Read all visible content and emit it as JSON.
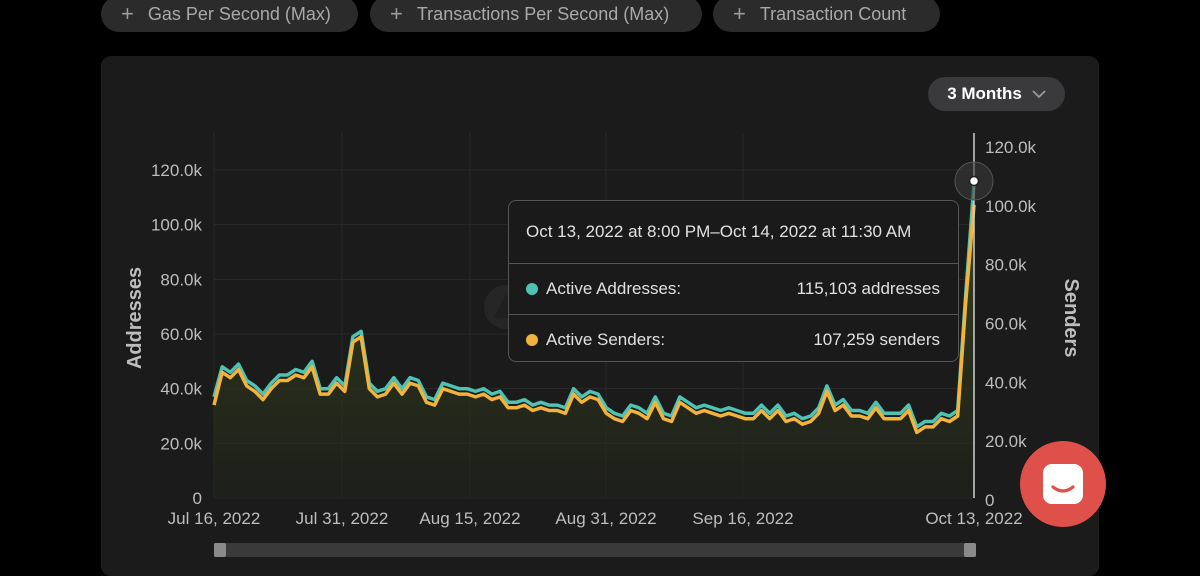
{
  "filters": [
    {
      "label": "Gas Per Second (Max)"
    },
    {
      "label": "Transactions Per Second (Max)"
    },
    {
      "label": "Transaction Count"
    }
  ],
  "range_selector": {
    "label": "3 Months",
    "icon": "chevron-down-icon"
  },
  "tooltip": {
    "date_range": "Oct 13, 2022 at 8:00 PM–Oct 14, 2022 at 11:30 AM",
    "rows": [
      {
        "label": "Active Addresses:",
        "value": "115,103 addresses",
        "color": "#4ec3b4"
      },
      {
        "label": "Active Senders:",
        "value": "107,259 senders",
        "color": "#f2b33d"
      }
    ]
  },
  "colors": {
    "addresses": "#4ec3b4",
    "senders": "#f2b33d",
    "chat": "#e0504a"
  },
  "chart_data": {
    "type": "line",
    "title": "",
    "xlabel": "",
    "ylabel": "Addresses",
    "ylabel_right": "Senders",
    "x_ticks": [
      "Jul 16, 2022",
      "Jul 31, 2022",
      "Aug 15, 2022",
      "Aug 31, 2022",
      "Sep 16, 2022",
      "Oct 13, 2022"
    ],
    "y_ticks_left": [
      "0",
      "20.0k",
      "40.0k",
      "60.0k",
      "80.0k",
      "100.0k",
      "120.0k"
    ],
    "y_ticks_right": [
      "0",
      "20.0k",
      "40.0k",
      "60.0k",
      "80.0k",
      "100.0k",
      "120.0k"
    ],
    "ylim": [
      0,
      128000
    ],
    "series": [
      {
        "name": "Active Addresses",
        "color": "#4ec3b4",
        "values": [
          37000,
          48000,
          46000,
          49000,
          43000,
          41000,
          38000,
          42000,
          45000,
          45000,
          47000,
          46000,
          50000,
          40000,
          40000,
          44000,
          41000,
          59000,
          61000,
          42000,
          39000,
          40000,
          44000,
          40000,
          44000,
          43000,
          37000,
          36000,
          42000,
          41000,
          40000,
          40000,
          39000,
          40000,
          38000,
          39000,
          35000,
          35000,
          36000,
          34000,
          35000,
          34000,
          34000,
          33000,
          40000,
          37000,
          39000,
          38000,
          33000,
          31000,
          30000,
          34000,
          33000,
          31000,
          37000,
          31000,
          30000,
          37000,
          35000,
          33000,
          34000,
          33000,
          32000,
          33000,
          32000,
          31000,
          31000,
          34000,
          31000,
          34000,
          30000,
          31000,
          29000,
          30000,
          33000,
          41000,
          34000,
          36000,
          32000,
          32000,
          31000,
          35000,
          31000,
          31000,
          31000,
          34000,
          26000,
          28000,
          28000,
          31000,
          30000,
          32000,
          75000,
          115103
        ]
      },
      {
        "name": "Active Senders",
        "color": "#f2b33d",
        "values": [
          34000,
          46000,
          44000,
          47000,
          41000,
          39000,
          36000,
          40000,
          43000,
          43000,
          45000,
          44000,
          48000,
          38000,
          38000,
          42000,
          39000,
          57000,
          59000,
          40000,
          37000,
          38000,
          42000,
          38000,
          42000,
          41000,
          35000,
          34000,
          40000,
          39000,
          38000,
          38000,
          37000,
          38000,
          36000,
          37000,
          33000,
          33000,
          34000,
          32000,
          33000,
          32000,
          32000,
          31000,
          38000,
          35000,
          37000,
          36000,
          31000,
          29000,
          28000,
          32000,
          31000,
          29000,
          35000,
          29000,
          28000,
          35000,
          33000,
          31000,
          32000,
          31000,
          30000,
          31000,
          30000,
          29000,
          29000,
          32000,
          29000,
          32000,
          28000,
          29000,
          27000,
          28000,
          31000,
          39000,
          32000,
          34000,
          30000,
          30000,
          29000,
          33000,
          29000,
          29000,
          29000,
          32000,
          24000,
          26000,
          26000,
          29000,
          28000,
          30000,
          72000,
          107259
        ]
      }
    ]
  }
}
